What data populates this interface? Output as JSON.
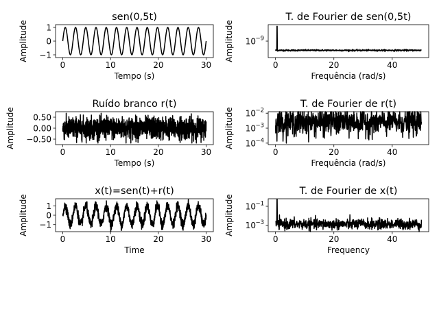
{
  "chart_data": [
    {
      "type": "line",
      "title": "sen(0,5t)",
      "xlabel": "Tempo (s)",
      "ylabel": "Amplitude",
      "xlim": [
        -1.5,
        31.5
      ],
      "ylim": [
        -1.2,
        1.2
      ],
      "xticks": [
        0,
        10,
        20,
        30
      ],
      "yticks": [
        -1,
        0,
        1
      ],
      "ytick_labels": [
        "−1",
        "0",
        "1"
      ],
      "series": [
        {
          "kind": "sine",
          "cycles": 14,
          "x_start": 0,
          "x_end": 30,
          "amplitude": 1
        }
      ]
    },
    {
      "type": "line",
      "title": "T. de Fourier de sen(0,5t)",
      "xlabel": "Frequência (rad/s)",
      "ylabel": "Amplitude",
      "yscale": "log",
      "xlim": [
        -2.5,
        52.5
      ],
      "ylim_log10": [
        -9.5,
        -8.5
      ],
      "xticks": [
        0,
        20,
        40
      ],
      "yticks_log10": [
        -9
      ],
      "ytick_labels": [
        "10",
        "−9"
      ],
      "series": [
        {
          "kind": "spectrum",
          "x_start": 0,
          "x_end": 50,
          "baseline_log10": -9.28,
          "noise_log10": 0.012,
          "peak_x": 0.5,
          "peak_log10": -8.55
        }
      ]
    },
    {
      "type": "line",
      "title": "Ruído branco r(t)",
      "xlabel": "Tempo (s)",
      "ylabel": "Amplitude",
      "xlim": [
        -1.5,
        31.5
      ],
      "ylim": [
        -0.75,
        0.75
      ],
      "xticks": [
        0,
        10,
        20,
        30
      ],
      "yticks": [
        -0.5,
        0,
        0.5
      ],
      "ytick_labels": [
        "−0.50",
        "0.00",
        "0.50"
      ],
      "series": [
        {
          "kind": "noise",
          "x_start": 0,
          "x_end": 30,
          "std": 0.25,
          "clip": 0.68
        }
      ]
    },
    {
      "type": "line",
      "title": "T. de Fourier de r(t)",
      "xlabel": "Frequência (rad/s)",
      "ylabel": "Amplitude",
      "yscale": "log",
      "xlim": [
        -2.5,
        52.5
      ],
      "ylim_log10": [
        -4.1,
        -1.9
      ],
      "xticks": [
        0,
        20,
        40
      ],
      "yticks_log10": [
        -4,
        -3,
        -2
      ],
      "ytick_labels": [
        [
          "10",
          "−4"
        ],
        [
          "10",
          "−3"
        ],
        [
          "10",
          "−2"
        ]
      ],
      "series": [
        {
          "kind": "spectrum",
          "x_start": 0,
          "x_end": 50,
          "baseline_log10": -2.6,
          "noise_log10": 0.45,
          "peak_x": null,
          "floor_log10": -4.0
        }
      ]
    },
    {
      "type": "line",
      "title": "x(t)=sen(t)+r(t)",
      "xlabel": "Time",
      "ylabel": "Amplitude",
      "xlim": [
        -1.5,
        31.5
      ],
      "ylim": [
        -1.75,
        1.75
      ],
      "xticks": [
        0,
        10,
        20,
        30
      ],
      "yticks": [
        -1,
        0,
        1
      ],
      "ytick_labels": [
        "−1",
        "0",
        "1"
      ],
      "series": [
        {
          "kind": "sine+noise",
          "cycles": 14,
          "x_start": 0,
          "x_end": 30,
          "amplitude": 1,
          "std": 0.25
        }
      ]
    },
    {
      "type": "line",
      "title": "T. de Fourier de x(t)",
      "xlabel": "Frequency",
      "ylabel": "Amplitude",
      "yscale": "log",
      "xlim": [
        -2.5,
        52.5
      ],
      "ylim_log10": [
        -3.7,
        -0.2
      ],
      "xticks": [
        0,
        20,
        40
      ],
      "yticks_log10": [
        -3,
        -1
      ],
      "ytick_labels": [
        [
          "10",
          "−3"
        ],
        [
          "10",
          "−1"
        ]
      ],
      "series": [
        {
          "kind": "spectrum",
          "x_start": 0,
          "x_end": 50,
          "baseline_log10": -2.9,
          "noise_log10": 0.28,
          "peak_x": 0.5,
          "peak_log10": -0.25
        }
      ]
    }
  ]
}
